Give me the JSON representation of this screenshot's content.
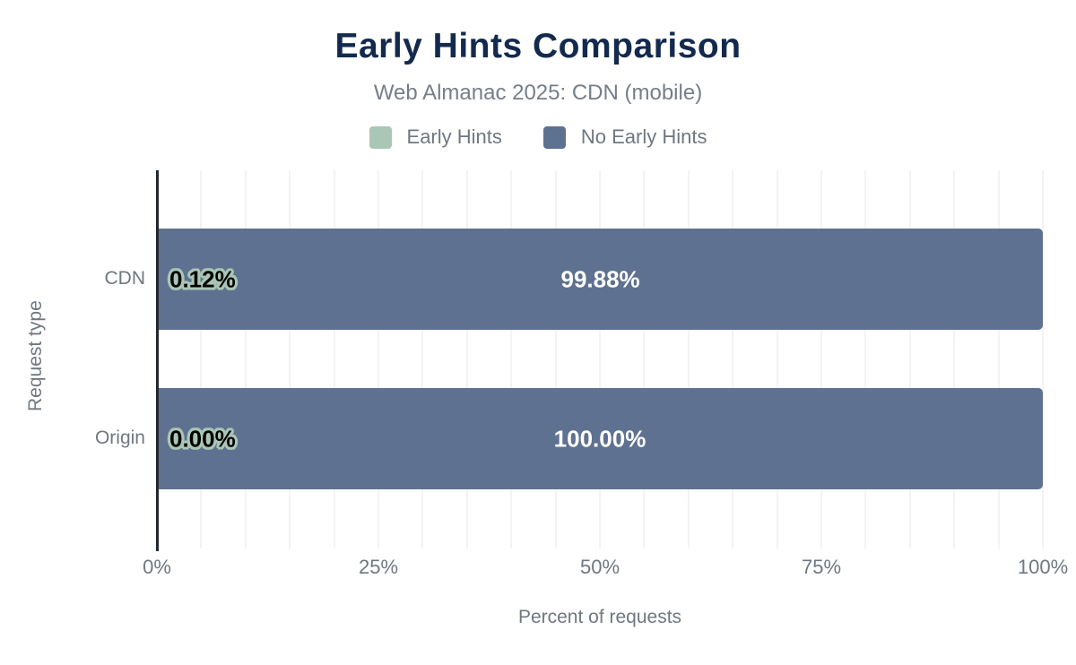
{
  "chart_data": {
    "type": "bar",
    "orientation": "horizontal",
    "stacked": true,
    "title": "Early Hints Comparison",
    "subtitle": "Web Almanac 2025: CDN (mobile)",
    "xlabel": "Percent of requests",
    "ylabel": "Request type",
    "categories": [
      "CDN",
      "Origin"
    ],
    "series": [
      {
        "name": "Early Hints",
        "color": "#aac6b6",
        "values": [
          0.12,
          0.0
        ],
        "labels": [
          "0.12%",
          "0.00%"
        ]
      },
      {
        "name": "No Early Hints",
        "color": "#5f7190",
        "values": [
          99.88,
          100.0
        ],
        "labels": [
          "99.88%",
          "100.00%"
        ]
      }
    ],
    "xlim": [
      0,
      100
    ],
    "xtick_values": [
      0,
      25,
      50,
      75,
      100
    ],
    "xtick_labels": [
      "0%",
      "25%",
      "50%",
      "75%",
      "100%"
    ],
    "gridline_interval": 5,
    "grid": true,
    "legend_position": "top",
    "colors": {
      "title": "#132a4e",
      "axis_text": "#6f7780",
      "axis_line": "#23282e",
      "gridline": "#f3f3f3"
    }
  }
}
